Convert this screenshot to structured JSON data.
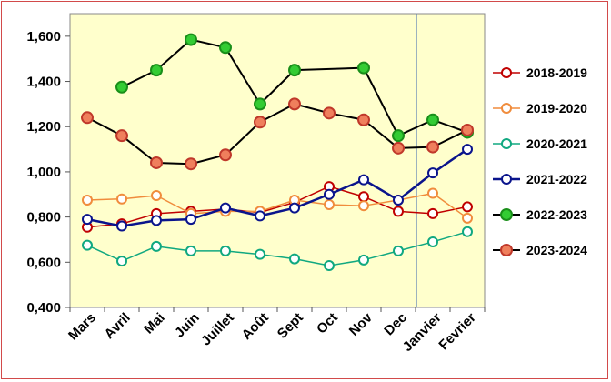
{
  "chart_data": {
    "type": "line",
    "categories": [
      "Mars",
      "Avril",
      "Mai",
      "Juin",
      "Juillet",
      "Août",
      "Sept",
      "Oct",
      "Nov",
      "Dec",
      "Janvier",
      "Fevrier"
    ],
    "ylim": [
      0.4,
      1.7
    ],
    "yticks": [
      "0,400",
      "0,600",
      "0,800",
      "1,000",
      "1,200",
      "1,400",
      "1,600"
    ],
    "ytick_values": [
      0.4,
      0.6,
      0.8,
      1.0,
      1.2,
      1.4,
      1.6
    ],
    "grid": false,
    "legend": "right",
    "background": "#ffffcc",
    "series": [
      {
        "name": "2018-2019",
        "color": "#c00000",
        "fill": "#ffffff",
        "marker": 5,
        "width": 1.5,
        "values": [
          0.755,
          0.77,
          0.815,
          0.825,
          0.835,
          0.82,
          0.865,
          0.935,
          0.89,
          0.825,
          0.815,
          0.845
        ]
      },
      {
        "name": "2019-2020",
        "color": "#f08c3c",
        "fill": "#ffffff",
        "marker": 5,
        "width": 1.5,
        "values": [
          0.875,
          0.88,
          0.895,
          0.815,
          0.825,
          0.825,
          0.875,
          0.855,
          0.85,
          0.875,
          0.905,
          0.795
        ]
      },
      {
        "name": "2020-2021",
        "color": "#10a880",
        "fill": "#ffffff",
        "marker": 5,
        "width": 1.5,
        "values": [
          0.675,
          0.605,
          0.67,
          0.65,
          0.65,
          0.635,
          0.615,
          0.585,
          0.61,
          0.65,
          0.69,
          0.735
        ]
      },
      {
        "name": "2021-2022",
        "color": "#0a148c",
        "fill": "#ffffff",
        "marker": 5,
        "width": 2.5,
        "values": [
          0.79,
          0.76,
          0.785,
          0.79,
          0.84,
          0.805,
          0.84,
          0.9,
          0.965,
          0.875,
          0.995,
          1.1
        ]
      },
      {
        "name": "2022-2023",
        "color": "#000000",
        "fill": "#33cc33",
        "marker": 6,
        "width": 2,
        "values": [
          null,
          1.375,
          1.45,
          1.585,
          1.55,
          1.3,
          1.45,
          null,
          1.46,
          1.16,
          1.23,
          1.175
        ]
      },
      {
        "name": "2023-2024",
        "color": "#000000",
        "fill": "#ef7f5c",
        "marker": 6,
        "width": 2,
        "values": [
          1.24,
          1.16,
          1.04,
          1.035,
          1.075,
          1.22,
          1.3,
          1.26,
          1.23,
          1.105,
          1.11,
          1.185
        ]
      }
    ]
  }
}
